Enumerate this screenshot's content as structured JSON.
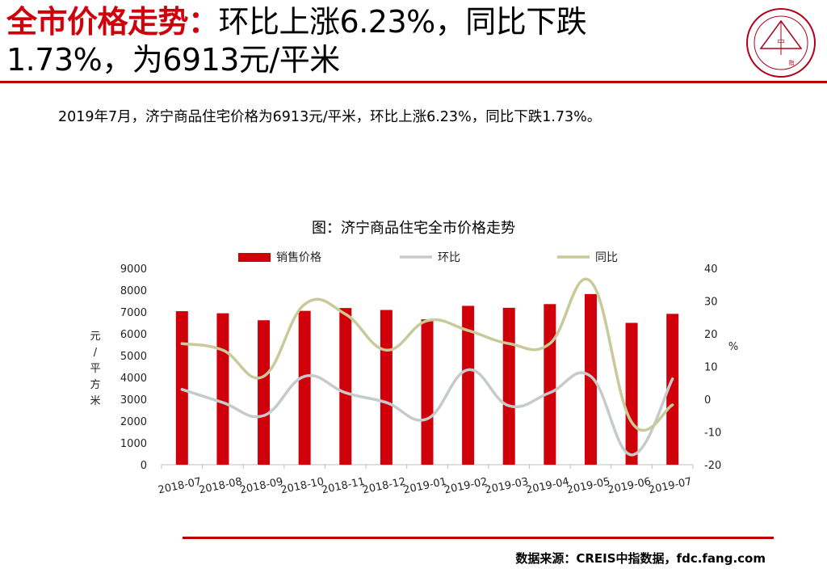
{
  "header": {
    "title_accent": "全市价格走势：",
    "title_rest_line1": "环比上涨6.23%，同比下跌",
    "title_line2": "1.73%，为6913元/平米"
  },
  "logo": {
    "icon": "china-index-academy-seal",
    "text": "中国指数研究院 CHINA INDEX ACADEMY"
  },
  "summary": "2019年7月，济宁商品住宅价格为6913元/平米，环比上涨6.23%，同比下跌1.73%。",
  "chart_title": "图：济宁商品住宅全市价格走势",
  "source": "数据来源：CREIS中指数据，fdc.fang.com",
  "colors": {
    "accent": "#c00000",
    "bar": "#d0000b",
    "mom": "#c5cbcb",
    "yoy": "#c9c99a"
  },
  "chart_data": {
    "type": "bar",
    "categories": [
      "2018-07",
      "2018-08",
      "2018-09",
      "2018-10",
      "2018-11",
      "2018-12",
      "2019-01",
      "2019-02",
      "2019-03",
      "2019-04",
      "2019-05",
      "2019-06",
      "2019-07"
    ],
    "ylabel": "元/平方米",
    "y2label": "%",
    "ylim": [
      0,
      9000
    ],
    "y2lim": [
      -20,
      40
    ],
    "yticks": [
      0,
      1000,
      2000,
      3000,
      4000,
      5000,
      6000,
      7000,
      8000,
      9000
    ],
    "y2ticks": [
      -20,
      -10,
      0,
      10,
      20,
      30,
      40
    ],
    "legend_position": "top",
    "grid": false,
    "series": [
      {
        "name": "销售价格",
        "type": "bar",
        "axis": "left",
        "values": [
          7035,
          6940,
          6620,
          7050,
          7180,
          7090,
          6660,
          7280,
          7190,
          7360,
          7820,
          6500,
          6913
        ]
      },
      {
        "name": "环比",
        "type": "line",
        "axis": "right",
        "values": [
          3,
          -1,
          -5,
          7,
          2,
          -1,
          -6,
          9,
          -2,
          2,
          7,
          -17,
          6.23
        ]
      },
      {
        "name": "同比",
        "type": "line",
        "axis": "right",
        "values": [
          17,
          15,
          7,
          29,
          26,
          15,
          24,
          21,
          17,
          17,
          36,
          -7,
          -1.73
        ]
      }
    ]
  }
}
